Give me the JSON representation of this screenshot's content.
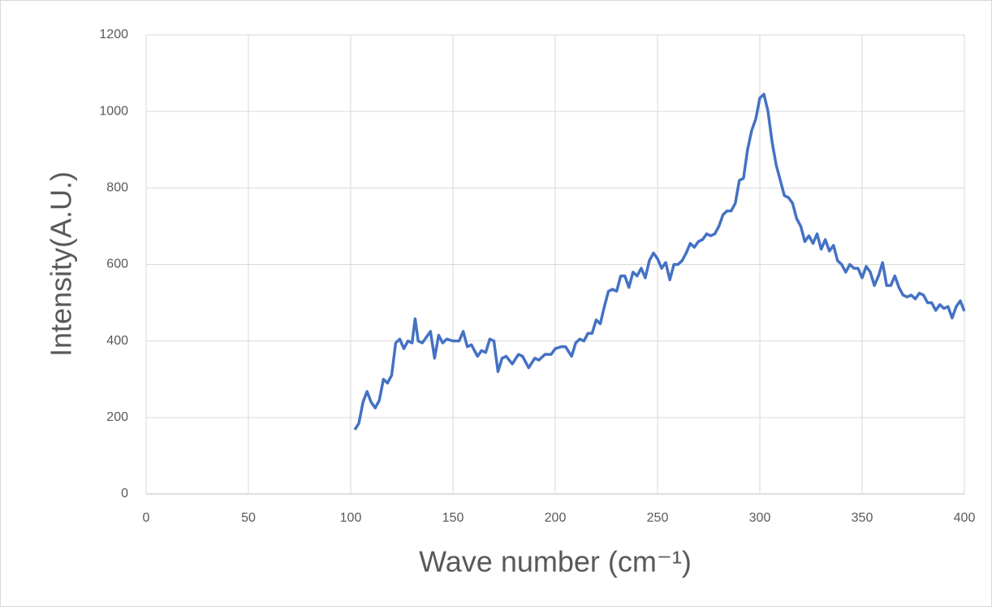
{
  "chart_data": {
    "type": "line",
    "xlabel": "Wave number (cm⁻¹)",
    "ylabel": "Intensity(A.U.)",
    "xlim": [
      0,
      400
    ],
    "xticks": [
      0,
      50,
      100,
      150,
      200,
      250,
      300,
      350,
      400
    ],
    "ylim": [
      0,
      1200
    ],
    "yticks": [
      0,
      200,
      400,
      600,
      800,
      1000,
      1200
    ],
    "grid": true,
    "x": [
      102,
      104,
      106,
      108,
      110,
      112,
      114,
      116,
      118,
      120,
      122,
      124,
      126,
      128,
      130,
      131.5,
      133,
      135,
      137,
      139,
      141,
      143,
      145,
      147,
      150,
      153,
      155,
      157,
      159,
      162,
      164,
      166,
      168,
      170,
      172,
      174,
      176,
      179,
      182,
      184,
      187,
      190,
      192,
      195,
      198,
      200,
      203,
      205,
      208,
      210,
      212,
      214,
      216,
      218,
      220,
      222,
      224,
      226,
      228,
      230,
      232,
      234,
      236,
      238,
      240,
      242,
      244,
      246,
      248,
      250,
      252,
      254,
      256,
      258,
      260,
      262,
      264,
      266,
      268,
      270,
      272,
      274,
      276,
      278,
      280,
      282,
      284,
      286,
      288,
      290,
      292,
      294,
      296,
      298,
      300,
      302,
      304,
      306,
      308,
      310,
      312,
      314,
      316,
      318,
      320,
      322,
      324,
      326,
      328,
      330,
      332,
      334,
      336,
      338,
      340,
      342,
      344,
      346,
      348,
      350,
      352,
      354,
      356,
      358,
      360,
      362,
      364,
      366,
      368,
      370,
      372,
      374,
      376,
      378,
      380,
      382,
      384,
      386,
      388,
      390,
      392,
      394,
      396,
      398,
      400
    ],
    "series": [
      {
        "name": "Intensity",
        "color": "#4472c4",
        "values": [
          168,
          185,
          240,
          268,
          240,
          225,
          245,
          300,
          290,
          310,
          395,
          405,
          380,
          400,
          395,
          458,
          400,
          395,
          410,
          425,
          355,
          415,
          395,
          405,
          400,
          400,
          425,
          385,
          390,
          360,
          375,
          370,
          405,
          400,
          320,
          355,
          360,
          340,
          365,
          360,
          330,
          355,
          350,
          365,
          365,
          380,
          385,
          385,
          360,
          395,
          405,
          400,
          420,
          420,
          455,
          445,
          490,
          530,
          535,
          530,
          570,
          570,
          540,
          580,
          570,
          590,
          565,
          610,
          630,
          615,
          590,
          605,
          560,
          600,
          600,
          610,
          630,
          655,
          645,
          660,
          665,
          680,
          675,
          680,
          700,
          730,
          740,
          740,
          760,
          820,
          825,
          900,
          950,
          980,
          1035,
          1045,
          1000,
          920,
          860,
          820,
          780,
          775,
          760,
          720,
          700,
          660,
          675,
          655,
          680,
          640,
          665,
          635,
          650,
          610,
          600,
          580,
          600,
          590,
          590,
          565,
          595,
          580,
          545,
          570,
          605,
          545,
          545,
          570,
          540,
          520,
          515,
          520,
          510,
          525,
          520,
          500,
          500,
          480,
          495,
          485,
          490,
          460,
          490,
          505,
          478
        ]
      }
    ]
  }
}
